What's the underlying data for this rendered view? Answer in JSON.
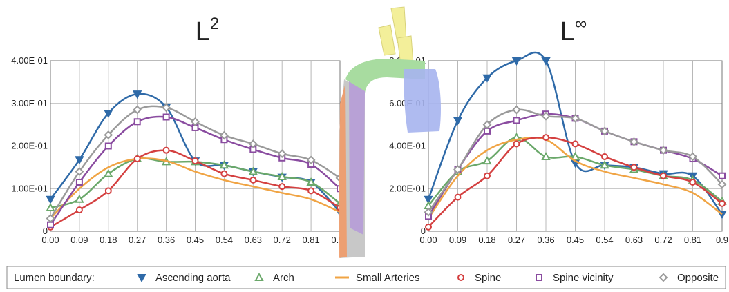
{
  "chart_data": [
    {
      "type": "line",
      "title": "L",
      "title_superscript": "2",
      "legend_title": "Lumen boundary:",
      "x": [
        0,
        0.09,
        0.18,
        0.27,
        0.36,
        0.45,
        0.54,
        0.63,
        0.72,
        0.81,
        0.9
      ],
      "xlim": [
        0,
        0.9
      ],
      "xticks": [
        {
          "value": 0,
          "label": "0.00"
        },
        {
          "value": 0.09,
          "label": "0.09"
        },
        {
          "value": 0.18,
          "label": "0.18"
        },
        {
          "value": 0.27,
          "label": "0.27"
        },
        {
          "value": 0.36,
          "label": "0.36"
        },
        {
          "value": 0.45,
          "label": "0.45"
        },
        {
          "value": 0.54,
          "label": "0.54"
        },
        {
          "value": 0.63,
          "label": "0.63"
        },
        {
          "value": 0.72,
          "label": "0.72"
        },
        {
          "value": 0.81,
          "label": "0.81"
        },
        {
          "value": 0.9,
          "label": "0.90"
        }
      ],
      "ylim": [
        0,
        0.4
      ],
      "yticks": [
        0,
        {
          "value": 0.1,
          "label": "1.00E-01"
        },
        {
          "value": 0.2,
          "label": "2.00E-01"
        },
        {
          "value": 0.3,
          "label": "3.00E-01"
        },
        {
          "value": 0.4,
          "label": "4.00E-01"
        }
      ],
      "grid": true,
      "series": [
        {
          "name": "Ascending aorta",
          "color": "#2f6aa8",
          "marker": "down-triangle",
          "values": [
            0.075,
            0.168,
            0.277,
            0.322,
            0.291,
            0.165,
            0.155,
            0.14,
            0.127,
            0.115,
            0.045
          ]
        },
        {
          "name": "Arch",
          "color": "#6aa86a",
          "marker": "triangle",
          "values": [
            0.055,
            0.075,
            0.135,
            0.17,
            0.163,
            0.163,
            0.155,
            0.14,
            0.128,
            0.115,
            0.065
          ]
        },
        {
          "name": "Small Arteries",
          "color": "#f0a444",
          "marker": "none",
          "values": [
            0.03,
            0.1,
            0.15,
            0.17,
            0.165,
            0.14,
            0.12,
            0.105,
            0.09,
            0.075,
            0.045
          ]
        },
        {
          "name": "Spine",
          "color": "#d44040",
          "marker": "circle",
          "values": [
            0.01,
            0.05,
            0.095,
            0.17,
            0.19,
            0.165,
            0.135,
            0.12,
            0.105,
            0.095,
            0.055
          ]
        },
        {
          "name": "Spine vicinity",
          "color": "#8a4ca0",
          "marker": "square",
          "values": [
            0.015,
            0.115,
            0.2,
            0.257,
            0.268,
            0.243,
            0.215,
            0.192,
            0.172,
            0.157,
            0.1
          ]
        },
        {
          "name": "Opposite",
          "color": "#9a9a9a",
          "marker": "diamond",
          "values": [
            0.03,
            0.14,
            0.226,
            0.285,
            0.29,
            0.257,
            0.225,
            0.205,
            0.182,
            0.167,
            0.125
          ]
        }
      ]
    },
    {
      "type": "line",
      "title": "L",
      "title_superscript": "∞",
      "x": [
        0,
        0.09,
        0.18,
        0.27,
        0.36,
        0.45,
        0.54,
        0.63,
        0.72,
        0.81,
        0.9
      ],
      "xlim": [
        0,
        0.9
      ],
      "xticks": [
        {
          "value": 0,
          "label": "0.00"
        },
        {
          "value": 0.09,
          "label": "0.09"
        },
        {
          "value": 0.18,
          "label": "0.18"
        },
        {
          "value": 0.27,
          "label": "0.27"
        },
        {
          "value": 0.36,
          "label": "0.36"
        },
        {
          "value": 0.45,
          "label": "0.45"
        },
        {
          "value": 0.54,
          "label": "0.54"
        },
        {
          "value": 0.63,
          "label": "0.63"
        },
        {
          "value": 0.72,
          "label": "0.72"
        },
        {
          "value": 0.81,
          "label": "0.81"
        },
        0.9
      ],
      "ylim": [
        0,
        0.8
      ],
      "yticks": [
        0,
        {
          "value": 0.2,
          "label": "2.00E-01"
        },
        {
          "value": 0.4,
          "label": "4.00E-01"
        },
        {
          "value": 0.6,
          "label": "6.00E-01"
        },
        {
          "value": 0.8,
          "label": "8.00E-01"
        }
      ],
      "grid": true,
      "series": [
        {
          "name": "Ascending aorta",
          "color": "#2f6aa8",
          "marker": "down-triangle",
          "values": [
            0.15,
            0.52,
            0.72,
            0.8,
            0.8,
            0.32,
            0.31,
            0.3,
            0.27,
            0.26,
            0.08
          ]
        },
        {
          "name": "Arch",
          "color": "#6aa86a",
          "marker": "triangle",
          "values": [
            0.12,
            0.28,
            0.33,
            0.44,
            0.35,
            0.35,
            0.31,
            0.29,
            0.26,
            0.24,
            0.14
          ]
        },
        {
          "name": "Small Arteries",
          "color": "#f0a444",
          "marker": "none",
          "values": [
            0.06,
            0.26,
            0.38,
            0.43,
            0.43,
            0.33,
            0.28,
            0.25,
            0.22,
            0.18,
            0.08
          ]
        },
        {
          "name": "Spine",
          "color": "#d44040",
          "marker": "circle",
          "values": [
            0.02,
            0.16,
            0.26,
            0.41,
            0.44,
            0.41,
            0.35,
            0.3,
            0.26,
            0.23,
            0.13
          ]
        },
        {
          "name": "Spine vicinity",
          "color": "#8a4ca0",
          "marker": "square",
          "values": [
            0.07,
            0.29,
            0.47,
            0.52,
            0.55,
            0.53,
            0.47,
            0.42,
            0.38,
            0.34,
            0.26
          ]
        },
        {
          "name": "Opposite",
          "color": "#9a9a9a",
          "marker": "diamond",
          "values": [
            0.09,
            0.29,
            0.5,
            0.57,
            0.54,
            0.53,
            0.47,
            0.42,
            0.38,
            0.35,
            0.22
          ]
        }
      ]
    }
  ]
}
